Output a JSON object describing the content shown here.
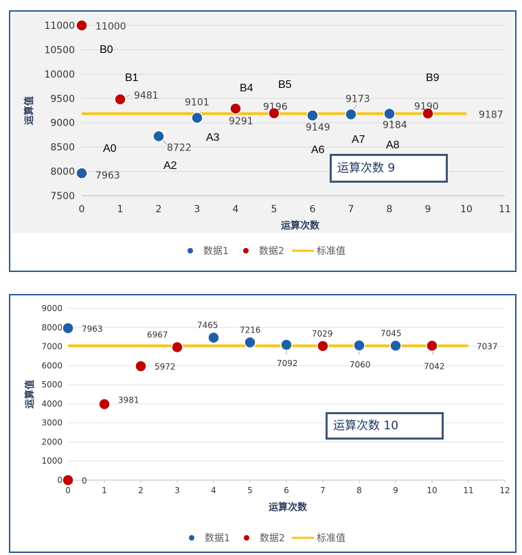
{
  "chart_data": [
    {
      "type": "scatter",
      "xlabel": "运算次数",
      "ylabel": "运算值",
      "xlim": [
        0,
        11
      ],
      "ylim": [
        7500,
        11000
      ],
      "xticks": [
        "0",
        "1",
        "2",
        "3",
        "4",
        "5",
        "6",
        "7",
        "8",
        "9",
        "10",
        "11"
      ],
      "yticks": [
        "7500",
        "8000",
        "8500",
        "9000",
        "9500",
        "10000",
        "10500",
        "11000"
      ],
      "series": [
        {
          "name": "数据1",
          "color": "#1f5fa6",
          "points": [
            {
              "x": 0,
              "y": 7963
            },
            {
              "x": 2,
              "y": 8722
            },
            {
              "x": 3,
              "y": 9101
            },
            {
              "x": 6,
              "y": 9149
            },
            {
              "x": 7,
              "y": 9173
            },
            {
              "x": 8,
              "y": 9184
            }
          ],
          "labels": [
            "7963",
            "8722",
            "9101",
            "9149",
            "9173",
            "9184"
          ]
        },
        {
          "name": "数据2",
          "color": "#c00000",
          "points": [
            {
              "x": 0,
              "y": 11000
            },
            {
              "x": 1,
              "y": 9481
            },
            {
              "x": 4,
              "y": 9291
            },
            {
              "x": 5,
              "y": 9196
            },
            {
              "x": 9,
              "y": 9190
            }
          ],
          "labels": [
            "11000",
            "9481",
            "9291",
            "9196",
            "9190"
          ]
        }
      ],
      "reference": {
        "name": "标准值",
        "value": 9187,
        "x_range": [
          0,
          10
        ],
        "label": "9187",
        "color": "#f5c518"
      },
      "annotations": [
        "B0",
        "B1",
        "A0",
        "A2",
        "A3",
        "B4",
        "B5",
        "A6",
        "A7",
        "A8",
        "B9"
      ],
      "inset_label": "运算次数  9",
      "legend": [
        "数据1",
        "数据2",
        "标准值"
      ],
      "legend_position": "bottom",
      "grid": "horizontal"
    },
    {
      "type": "scatter",
      "xlabel": "运算次数",
      "ylabel": "运算值",
      "xlim": [
        0,
        12
      ],
      "ylim": [
        0,
        9000
      ],
      "xticks": [
        "0",
        "1",
        "2",
        "3",
        "4",
        "5",
        "6",
        "7",
        "8",
        "9",
        "10",
        "11",
        "12"
      ],
      "yticks": [
        "0",
        "1000",
        "2000",
        "3000",
        "4000",
        "5000",
        "6000",
        "7000",
        "8000",
        "9000"
      ],
      "series": [
        {
          "name": "数据1",
          "color": "#1f5fa6",
          "points": [
            {
              "x": 0,
              "y": 7963
            },
            {
              "x": 4,
              "y": 7465
            },
            {
              "x": 5,
              "y": 7216
            },
            {
              "x": 6,
              "y": 7092
            },
            {
              "x": 8,
              "y": 7060
            },
            {
              "x": 9,
              "y": 7045
            }
          ],
          "labels": [
            "7963",
            "7465",
            "7216",
            "7092",
            "7060",
            "7045"
          ]
        },
        {
          "name": "数据2",
          "color": "#c00000",
          "points": [
            {
              "x": 0,
              "y": 0
            },
            {
              "x": 1,
              "y": 3981
            },
            {
              "x": 2,
              "y": 5972
            },
            {
              "x": 3,
              "y": 6967
            },
            {
              "x": 7,
              "y": 7029
            },
            {
              "x": 10,
              "y": 7042
            }
          ],
          "labels": [
            "0",
            "3981",
            "5972",
            "6967",
            "7029",
            "7042"
          ]
        }
      ],
      "reference": {
        "name": "标准值",
        "value": 7037,
        "x_range": [
          0,
          11
        ],
        "label": "7037",
        "color": "#f5c518"
      },
      "inset_label": "运算次数  10",
      "legend": [
        "数据1",
        "数据2",
        "标准值"
      ],
      "legend_position": "bottom",
      "grid": "horizontal"
    }
  ]
}
